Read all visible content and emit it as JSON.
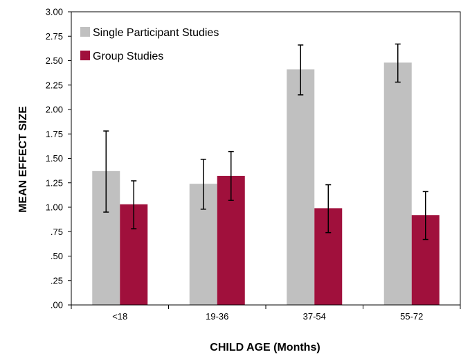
{
  "chart_data": {
    "type": "bar",
    "categories": [
      "<18",
      "19-36",
      "37-54",
      "55-72"
    ],
    "series": [
      {
        "name": "Single Participant Studies",
        "color": "#c0c0c0",
        "values": [
          1.37,
          1.24,
          2.41,
          2.48
        ],
        "error_low": [
          0.95,
          0.98,
          2.15,
          2.28
        ],
        "error_high": [
          1.78,
          1.49,
          2.66,
          2.67
        ]
      },
      {
        "name": "Group Studies",
        "color": "#a0103c",
        "values": [
          1.03,
          1.32,
          0.99,
          0.92
        ],
        "error_low": [
          0.78,
          1.07,
          0.74,
          0.67
        ],
        "error_high": [
          1.27,
          1.57,
          1.23,
          1.16
        ]
      }
    ],
    "xlabel": "CHILD AGE (Months)",
    "ylabel": "MEAN EFFECT SIZE",
    "ylim": [
      0,
      3
    ],
    "yticks": [
      0,
      0.25,
      0.5,
      0.75,
      1.0,
      1.25,
      1.5,
      1.75,
      2.0,
      2.25,
      2.5,
      2.75,
      3.0
    ],
    "ytick_labels": [
      ".00",
      ".25",
      ".50",
      ".75",
      "1.00",
      "1.25",
      "1.50",
      "1.75",
      "2.00",
      "2.25",
      "2.50",
      "2.75",
      "3.00"
    ],
    "grid": false,
    "legend": "top-left"
  }
}
